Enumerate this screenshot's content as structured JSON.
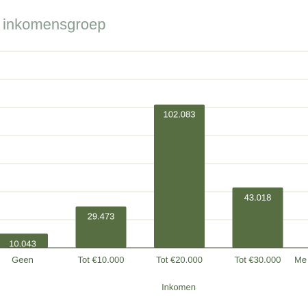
{
  "chart_data": {
    "type": "bar",
    "title": "inkomensgroep",
    "xlabel": "Inkomen",
    "ylabel": "",
    "categories": [
      "Geen",
      "Tot €10.000",
      "Tot €20.000",
      "Tot €30.000",
      "Me"
    ],
    "values": [
      10043,
      29473,
      102083,
      43018,
      null
    ],
    "value_labels": [
      "10.043",
      "29.473",
      "102.083",
      "43.018",
      ""
    ],
    "ylim": [
      0,
      140000
    ],
    "grid": true,
    "bar_color": "#566e41",
    "grid_color": "#dfe6d3",
    "baseline_color": "#3e4a36"
  }
}
